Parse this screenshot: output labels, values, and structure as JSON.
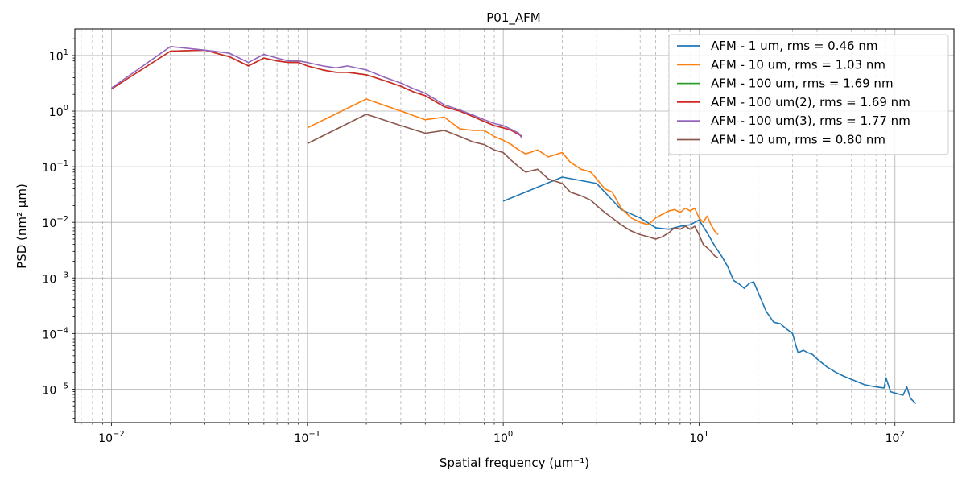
{
  "chart_data": {
    "type": "line",
    "title": "P01_AFM",
    "xlabel": "Spatial frequency (μm⁻¹)",
    "ylabel": "PSD (nm² μm)",
    "xscale": "log",
    "yscale": "log",
    "xlim": [
      0.0065,
      200
    ],
    "ylim": [
      2.5e-06,
      30
    ],
    "x_ticks": [
      {
        "value": 0.01,
        "base": "10",
        "exp": "−2"
      },
      {
        "value": 0.1,
        "base": "10",
        "exp": "−1"
      },
      {
        "value": 1,
        "base": "10",
        "exp": "0"
      },
      {
        "value": 10,
        "base": "10",
        "exp": "1"
      },
      {
        "value": 100,
        "base": "10",
        "exp": "2"
      }
    ],
    "y_ticks": [
      {
        "value": 1e-05,
        "base": "10",
        "exp": "−5"
      },
      {
        "value": 0.0001,
        "base": "10",
        "exp": "−4"
      },
      {
        "value": 0.001,
        "base": "10",
        "exp": "−3"
      },
      {
        "value": 0.01,
        "base": "10",
        "exp": "−2"
      },
      {
        "value": 0.1,
        "base": "10",
        "exp": "−1"
      },
      {
        "value": 1,
        "base": "10",
        "exp": "0"
      },
      {
        "value": 10,
        "base": "10",
        "exp": "1"
      }
    ],
    "grid": true,
    "minor_grid": "x",
    "legend_position": "top-right",
    "series": [
      {
        "name": "AFM - 1 um, rms =   0.46 nm",
        "color": "#1f77b4",
        "x": [
          1,
          2,
          3,
          4,
          5,
          6,
          7,
          8,
          9,
          10,
          11,
          12,
          13,
          14,
          15,
          16,
          17,
          18,
          19,
          20,
          22,
          24,
          26,
          28,
          30,
          32,
          34,
          36,
          38,
          40,
          45,
          50,
          55,
          60,
          70,
          80,
          88,
          90,
          95,
          100,
          110,
          115,
          120,
          128
        ],
        "y": [
          0.024,
          0.065,
          0.05,
          0.017,
          0.012,
          0.008,
          0.0075,
          0.0085,
          0.009,
          0.011,
          0.0065,
          0.0038,
          0.0025,
          0.0016,
          0.0009,
          0.00078,
          0.00065,
          0.0008,
          0.00085,
          0.00055,
          0.00025,
          0.00016,
          0.00015,
          0.00012,
          0.0001,
          4.5e-05,
          5e-05,
          4.5e-05,
          4.2e-05,
          3.5e-05,
          2.5e-05,
          2e-05,
          1.7e-05,
          1.5e-05,
          1.2e-05,
          1.1e-05,
          1.05e-05,
          1.6e-05,
          9e-06,
          8.5e-06,
          7.8e-06,
          1.1e-05,
          6.8e-06,
          5.5e-06
        ]
      },
      {
        "name": "AFM - 10 um, rms =   1.03 nm",
        "color": "#ff7f0e",
        "x": [
          0.1,
          0.2,
          0.3,
          0.4,
          0.5,
          0.6,
          0.7,
          0.8,
          0.9,
          1.0,
          1.1,
          1.2,
          1.3,
          1.5,
          1.7,
          2.0,
          2.2,
          2.5,
          2.8,
          3.0,
          3.3,
          3.6,
          4.0,
          4.5,
          5.0,
          5.5,
          6.0,
          6.5,
          7.0,
          7.5,
          8.0,
          8.5,
          9.0,
          9.5,
          10.0,
          10.5,
          11.0,
          11.5,
          12.0,
          12.5
        ],
        "y": [
          0.5,
          1.65,
          1.0,
          0.7,
          0.78,
          0.48,
          0.45,
          0.45,
          0.35,
          0.3,
          0.25,
          0.2,
          0.17,
          0.2,
          0.15,
          0.18,
          0.12,
          0.09,
          0.08,
          0.06,
          0.04,
          0.035,
          0.018,
          0.012,
          0.01,
          0.009,
          0.012,
          0.014,
          0.016,
          0.017,
          0.015,
          0.018,
          0.016,
          0.018,
          0.012,
          0.01,
          0.013,
          0.009,
          0.007,
          0.006
        ]
      },
      {
        "name": "AFM - 100 um, rms =   1.69 nm",
        "color": "#2ca02c",
        "x": [
          0.01,
          0.02,
          0.03,
          0.04,
          0.05,
          0.06,
          0.07,
          0.08,
          0.09,
          0.1,
          0.12,
          0.14,
          0.16,
          0.2,
          0.25,
          0.3,
          0.35,
          0.4,
          0.5,
          0.6,
          0.7,
          0.8,
          0.9,
          1.0,
          1.1,
          1.2,
          1.25
        ],
        "y": [
          2.5,
          12.0,
          12.5,
          9.5,
          6.5,
          9.0,
          8.0,
          7.5,
          7.5,
          6.5,
          5.5,
          5.0,
          5.0,
          4.5,
          3.5,
          2.8,
          2.2,
          1.9,
          1.2,
          1.0,
          0.8,
          0.65,
          0.55,
          0.5,
          0.45,
          0.38,
          0.35
        ]
      },
      {
        "name": "AFM - 100 um(2), rms =   1.69 nm",
        "color": "#d62728",
        "x": [
          0.01,
          0.02,
          0.03,
          0.04,
          0.05,
          0.06,
          0.07,
          0.08,
          0.09,
          0.1,
          0.12,
          0.14,
          0.16,
          0.2,
          0.25,
          0.3,
          0.35,
          0.4,
          0.5,
          0.6,
          0.7,
          0.8,
          0.9,
          1.0,
          1.1,
          1.2,
          1.25
        ],
        "y": [
          2.5,
          12.0,
          12.5,
          9.5,
          6.5,
          9.0,
          8.0,
          7.5,
          7.5,
          6.5,
          5.5,
          5.0,
          5.0,
          4.5,
          3.5,
          2.8,
          2.2,
          1.9,
          1.2,
          1.0,
          0.8,
          0.65,
          0.55,
          0.5,
          0.45,
          0.38,
          0.35
        ]
      },
      {
        "name": "AFM - 100 um(3), rms =   1.77 nm",
        "color": "#9467bd",
        "x": [
          0.01,
          0.02,
          0.03,
          0.04,
          0.05,
          0.06,
          0.07,
          0.08,
          0.09,
          0.1,
          0.12,
          0.14,
          0.16,
          0.2,
          0.25,
          0.3,
          0.35,
          0.4,
          0.5,
          0.6,
          0.7,
          0.8,
          0.9,
          1.0,
          1.1,
          1.2,
          1.25
        ],
        "y": [
          2.6,
          14.5,
          12.5,
          11.0,
          7.5,
          10.5,
          9.0,
          8.0,
          8.0,
          7.5,
          6.5,
          6.0,
          6.5,
          5.5,
          4.0,
          3.2,
          2.5,
          2.1,
          1.3,
          1.05,
          0.85,
          0.7,
          0.6,
          0.55,
          0.47,
          0.4,
          0.32
        ]
      },
      {
        "name": "AFM - 10 um, rms =   0.80 nm",
        "color": "#8c564b",
        "x": [
          0.1,
          0.2,
          0.3,
          0.4,
          0.5,
          0.6,
          0.7,
          0.8,
          0.9,
          1.0,
          1.1,
          1.2,
          1.3,
          1.5,
          1.7,
          2.0,
          2.2,
          2.5,
          2.8,
          3.0,
          3.3,
          3.6,
          4.0,
          4.5,
          5.0,
          5.5,
          6.0,
          6.5,
          7.0,
          7.5,
          8.0,
          8.5,
          9.0,
          9.5,
          10.0,
          10.5,
          11.0,
          11.5,
          12.0,
          12.5
        ],
        "y": [
          0.26,
          0.88,
          0.55,
          0.4,
          0.45,
          0.35,
          0.28,
          0.25,
          0.2,
          0.18,
          0.13,
          0.1,
          0.08,
          0.09,
          0.06,
          0.05,
          0.035,
          0.03,
          0.025,
          0.02,
          0.015,
          0.012,
          0.009,
          0.007,
          0.006,
          0.0055,
          0.005,
          0.0055,
          0.0065,
          0.008,
          0.0075,
          0.0085,
          0.0075,
          0.0085,
          0.006,
          0.004,
          0.0035,
          0.003,
          0.0025,
          0.0023
        ]
      }
    ]
  }
}
